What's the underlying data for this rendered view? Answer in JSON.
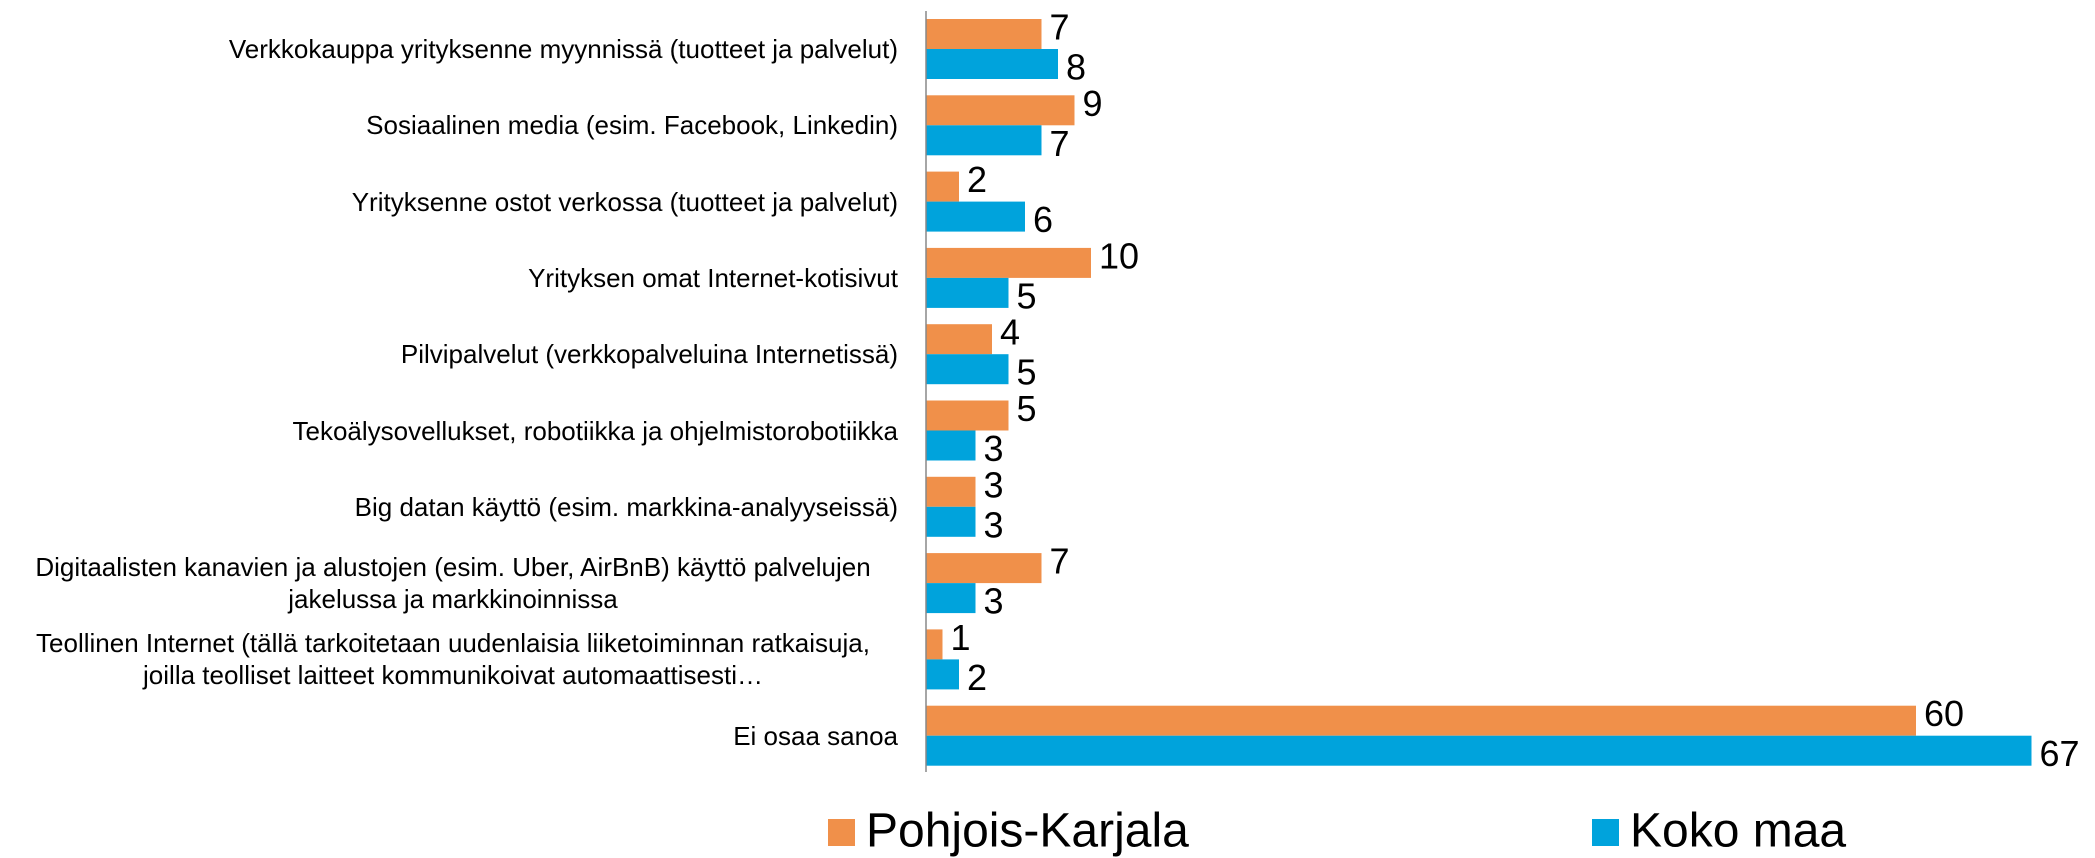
{
  "chart_data": {
    "type": "bar",
    "orientation": "horizontal",
    "categories": [
      "Verkkokauppa yrityksenne myynnissä (tuotteet ja palvelut)",
      "Sosiaalinen media (esim. Facebook, Linkedin)",
      "Yrityksenne ostot verkossa (tuotteet ja palvelut)",
      "Yrityksen omat Internet-kotisivut",
      "Pilvipalvelut  (verkkopalveluina Internetissä)",
      "Tekoälysovellukset, robotiikka ja ohjelmistorobotiikka",
      "Big datan käyttö (esim. markkina-analyyseissä)",
      "Digitaalisten kanavien ja alustojen (esim. Uber, AirBnB) käyttö palvelujen jakelussa ja markkinoinnissa",
      "Teollinen Internet (tällä tarkoitetaan uudenlaisia liiketoiminnan ratkaisuja, joilla teolliset laitteet kommunikoivat automaattisesti…",
      "Ei osaa sanoa"
    ],
    "series": [
      {
        "name": "Pohjois-Karjala",
        "color": "#f0904a",
        "values": [
          7,
          9,
          2,
          10,
          4,
          5,
          3,
          7,
          1,
          60
        ]
      },
      {
        "name": "Koko maa",
        "color": "#00a3dc",
        "values": [
          8,
          7,
          6,
          5,
          5,
          3,
          3,
          3,
          2,
          67
        ]
      }
    ],
    "xlim": [
      0,
      70
    ],
    "legend": "bottom"
  }
}
